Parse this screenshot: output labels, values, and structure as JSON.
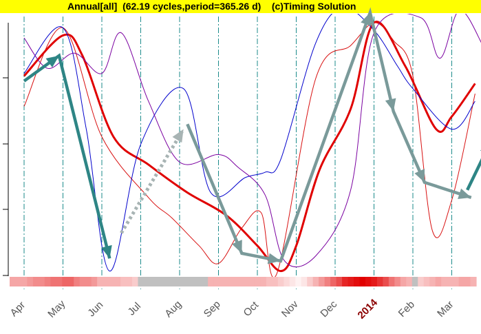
{
  "header": {
    "title": "Annual[all]  (62.19 cycles,period=365.26 d)    (c)Timing Solution",
    "background": "#ffff00"
  },
  "chart_data": {
    "type": "line",
    "title": "Annual[all]  (62.19 cycles,period=365.26 d)    (c)Timing Solution",
    "x_months": [
      "Apr",
      "May",
      "Jun",
      "Jul",
      "Aug",
      "Sep",
      "Oct",
      "Nov",
      "Dec",
      "2014",
      "Feb",
      "Mar"
    ],
    "highlighted_label": "2014",
    "grid": "vertical dashed lines at month boundaries",
    "xlabel": "",
    "ylabel": "",
    "series": [
      {
        "color": "#e00000",
        "width": 3,
        "points": [
          [
            0,
            0.79
          ],
          [
            1.0,
            0.95
          ],
          [
            1.5,
            0.87
          ],
          [
            2.3,
            0.55
          ],
          [
            3.2,
            0.44
          ],
          [
            4.2,
            0.33
          ],
          [
            5.2,
            0.24
          ],
          [
            6.0,
            0.12
          ],
          [
            6.6,
            0.02
          ],
          [
            7.0,
            0.12
          ],
          [
            7.6,
            0.42
          ],
          [
            8.4,
            0.66
          ],
          [
            9.0,
            1.0
          ],
          [
            9.8,
            0.83
          ],
          [
            10.6,
            0.58
          ],
          [
            11.0,
            0.63
          ],
          [
            11.6,
            0.76
          ]
        ]
      },
      {
        "color": "#d81010",
        "width": 1,
        "points": [
          [
            0,
            0.67
          ],
          [
            1.0,
            0.98
          ],
          [
            2.0,
            0.55
          ],
          [
            3.2,
            0.31
          ],
          [
            3.8,
            0.23
          ],
          [
            4.5,
            0.12
          ],
          [
            5.0,
            0.05
          ],
          [
            5.6,
            0.19
          ],
          [
            6.1,
            0.25
          ],
          [
            6.5,
            0.01
          ],
          [
            7.5,
            0.78
          ],
          [
            8.4,
            0.91
          ],
          [
            9.0,
            1.0
          ],
          [
            9.5,
            0.93
          ],
          [
            10.0,
            0.79
          ],
          [
            10.5,
            0.18
          ],
          [
            11.0,
            0.3
          ],
          [
            11.6,
            0.72
          ]
        ]
      },
      {
        "color": "#0000cc",
        "width": 1,
        "points": [
          [
            0,
            0.8
          ],
          [
            1.0,
            0.98
          ],
          [
            1.6,
            0.58
          ],
          [
            2.2,
            0.02
          ],
          [
            3.0,
            0.52
          ],
          [
            4.1,
            0.74
          ],
          [
            4.8,
            0.33
          ],
          [
            5.7,
            0.39
          ],
          [
            6.2,
            0.41
          ],
          [
            6.6,
            0.46
          ],
          [
            7.5,
            0.92
          ],
          [
            8.2,
            1.06
          ],
          [
            9.0,
            0.97
          ],
          [
            9.6,
            0.83
          ],
          [
            10.0,
            0.74
          ],
          [
            11.0,
            0.58
          ],
          [
            11.6,
            0.69
          ]
        ]
      },
      {
        "color": "#7a00a0",
        "width": 1,
        "points": [
          [
            0,
            0.94
          ],
          [
            0.6,
            0.82
          ],
          [
            1.3,
            0.88
          ],
          [
            2.0,
            0.8
          ],
          [
            2.5,
            0.96
          ],
          [
            3.2,
            0.69
          ],
          [
            4.0,
            0.45
          ],
          [
            5.0,
            0.48
          ],
          [
            5.5,
            0.43
          ],
          [
            6.2,
            0.32
          ],
          [
            6.7,
            0.06
          ],
          [
            7.5,
            0.08
          ],
          [
            8.4,
            0.34
          ],
          [
            9.0,
            0.96
          ],
          [
            10.2,
            1.02
          ],
          [
            10.7,
            0.86
          ],
          [
            11.2,
            1.05
          ],
          [
            11.8,
            0.91
          ]
        ]
      }
    ],
    "arrows": [
      {
        "color": "#2e8585",
        "style": "solid",
        "points": [
          [
            0,
            0.77
          ],
          [
            0.9,
            0.87
          ],
          [
            2.2,
            0.07
          ]
        ]
      },
      {
        "color": "#a8b4b4",
        "style": "dotted",
        "points": [
          [
            2.5,
            0.17
          ],
          [
            4.1,
            0.58
          ]
        ]
      },
      {
        "color": "#7a9a9a",
        "style": "solid",
        "points": [
          [
            4.2,
            0.6
          ],
          [
            5.6,
            0.09
          ],
          [
            6.6,
            0.06
          ],
          [
            8.9,
            1.04
          ],
          [
            9.5,
            0.65
          ],
          [
            10.3,
            0.37
          ],
          [
            11.5,
            0.31
          ]
        ]
      },
      {
        "color": "#2e8585",
        "style": "solid",
        "points": [
          [
            11.4,
            0.34
          ],
          [
            12.0,
            0.53
          ]
        ]
      }
    ],
    "heat_strip": {
      "description": "intensity per position, 0 = white, 1 = strong red, gray = no data",
      "cells": [
        0.35,
        0.35,
        0.35,
        0.4,
        0.45,
        0.45,
        0.5,
        0.55,
        0.55,
        0.6,
        0.6,
        0.5,
        0.45,
        0.45,
        0.4,
        0.3,
        0.3,
        0.3,
        0.3,
        0.25,
        0.25,
        0.2,
        "gray",
        "gray",
        "gray",
        "gray",
        "gray",
        "gray",
        "gray",
        "gray",
        "gray",
        "gray",
        "gray",
        "gray",
        0.3,
        0.3,
        0.3,
        0.3,
        0.3,
        0.3,
        0.3,
        0.3,
        0.3,
        0.3,
        0.25,
        0.25,
        0.2,
        0.15,
        0.1,
        0.05,
        0.1,
        0.2,
        0.3,
        0.4,
        0.5,
        0.6,
        0.7,
        0.85,
        0.9,
        0.95,
        1.0,
        0.95,
        0.9,
        0.8,
        0.7,
        0.55,
        0.45,
        0.35,
        0.3,
        "gray",
        0.2,
        0.25,
        0.3,
        0.35,
        0.3,
        0.3,
        0.3,
        0.35,
        0.35,
        0.3
      ]
    }
  }
}
